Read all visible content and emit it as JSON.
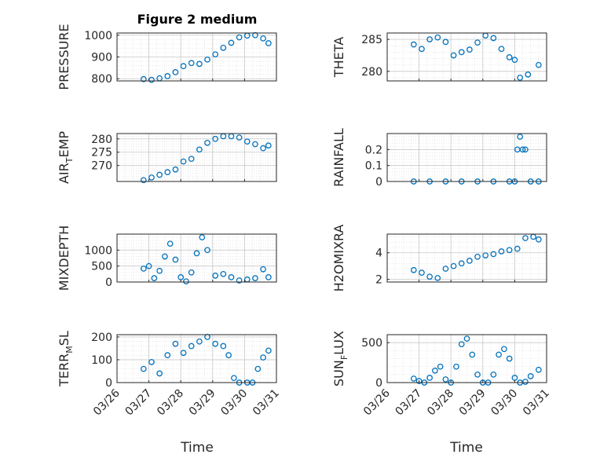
{
  "figure": {
    "title": "Figure 2 medium",
    "xlabel": "Time",
    "x_ticks": [
      "03/26",
      "03/27",
      "03/28",
      "03/29",
      "03/30",
      "03/31"
    ]
  },
  "chart_data": [
    {
      "type": "scatter",
      "ylabel": "PRESSURE",
      "ylim": [
        790,
        1010
      ],
      "yticks": [
        800,
        900,
        1000
      ],
      "marker": "circle-open",
      "color": "#0072BD",
      "grid": "minor+major",
      "x": [
        "2003-03-26T20",
        "2003-03-27T02",
        "2003-03-27T08",
        "2003-03-27T14",
        "2003-03-27T20",
        "2003-03-28T02",
        "2003-03-28T08",
        "2003-03-28T14",
        "2003-03-28T20",
        "2003-03-29T02",
        "2003-03-29T08",
        "2003-03-29T14",
        "2003-03-29T20",
        "2003-03-30T02",
        "2003-03-30T08",
        "2003-03-30T14",
        "2003-03-30T18"
      ],
      "y": [
        798,
        795,
        802,
        812,
        830,
        858,
        872,
        868,
        888,
        912,
        942,
        965,
        990,
        998,
        1000,
        985,
        963
      ]
    },
    {
      "type": "scatter",
      "ylabel": "THETA",
      "ylim": [
        278.5,
        286
      ],
      "yticks": [
        280,
        285
      ],
      "marker": "circle-open",
      "color": "#0072BD",
      "grid": "minor+major",
      "x": [
        "2003-03-26T20",
        "2003-03-27T02",
        "2003-03-27T08",
        "2003-03-27T14",
        "2003-03-27T20",
        "2003-03-28T02",
        "2003-03-28T08",
        "2003-03-28T14",
        "2003-03-28T20",
        "2003-03-29T02",
        "2003-03-29T08",
        "2003-03-29T14",
        "2003-03-29T20",
        "2003-03-30T00",
        "2003-03-30T04",
        "2003-03-30T10",
        "2003-03-30T18"
      ],
      "y": [
        284.2,
        283.5,
        285.0,
        285.3,
        284.6,
        282.5,
        283.0,
        283.4,
        284.5,
        285.6,
        285.2,
        283.5,
        282.2,
        281.8,
        279.0,
        279.5,
        281.0
      ]
    },
    {
      "type": "scatter",
      "ylabel": "AIR_TEMP",
      "ylim": [
        264,
        282
      ],
      "yticks": [
        270,
        275,
        280
      ],
      "marker": "circle-open",
      "color": "#0072BD",
      "grid": "minor+major",
      "x": [
        "2003-03-26T20",
        "2003-03-27T02",
        "2003-03-27T08",
        "2003-03-27T14",
        "2003-03-27T20",
        "2003-03-28T02",
        "2003-03-28T08",
        "2003-03-28T14",
        "2003-03-28T20",
        "2003-03-29T02",
        "2003-03-29T08",
        "2003-03-29T14",
        "2003-03-29T20",
        "2003-03-30T02",
        "2003-03-30T08",
        "2003-03-30T14",
        "2003-03-30T18"
      ],
      "y": [
        264.5,
        265.5,
        266.5,
        267.5,
        268.5,
        271.5,
        272.5,
        276,
        278.5,
        280,
        281,
        281,
        280.5,
        279,
        278,
        276.5,
        277.5
      ]
    },
    {
      "type": "scatter",
      "ylabel": "RAINFALL",
      "ylim": [
        0,
        0.3
      ],
      "yticks": [
        0,
        0.1,
        0.2
      ],
      "marker": "circle-open",
      "color": "#0072BD",
      "grid": "minor+major",
      "x": [
        "2003-03-26T20",
        "2003-03-27T08",
        "2003-03-27T20",
        "2003-03-28T08",
        "2003-03-28T20",
        "2003-03-29T08",
        "2003-03-29T20",
        "2003-03-30T00",
        "2003-03-30T02",
        "2003-03-30T04",
        "2003-03-30T06",
        "2003-03-30T08",
        "2003-03-30T12",
        "2003-03-30T18"
      ],
      "y": [
        0,
        0,
        0,
        0,
        0,
        0,
        0,
        0,
        0.2,
        0.28,
        0.2,
        0.2,
        0,
        0
      ]
    },
    {
      "type": "scatter",
      "ylabel": "MIXDEPTH",
      "ylim": [
        0,
        1500
      ],
      "yticks": [
        0,
        500,
        1000
      ],
      "marker": "circle-open",
      "color": "#0072BD",
      "grid": "minor+major",
      "x": [
        "2003-03-26T20",
        "2003-03-27T00",
        "2003-03-27T04",
        "2003-03-27T08",
        "2003-03-27T12",
        "2003-03-27T16",
        "2003-03-27T20",
        "2003-03-28T00",
        "2003-03-28T04",
        "2003-03-28T08",
        "2003-03-28T12",
        "2003-03-28T16",
        "2003-03-28T20",
        "2003-03-29T02",
        "2003-03-29T08",
        "2003-03-29T14",
        "2003-03-29T20",
        "2003-03-30T02",
        "2003-03-30T08",
        "2003-03-30T14",
        "2003-03-30T18"
      ],
      "y": [
        420,
        500,
        120,
        350,
        800,
        1200,
        700,
        150,
        20,
        300,
        900,
        1400,
        1000,
        200,
        250,
        150,
        50,
        80,
        120,
        400,
        150
      ]
    },
    {
      "type": "scatter",
      "ylabel": "H2OMIXRA",
      "ylim": [
        1.8,
        5.4
      ],
      "yticks": [
        2,
        4
      ],
      "marker": "circle-open",
      "color": "#0072BD",
      "grid": "minor+major",
      "x": [
        "2003-03-26T20",
        "2003-03-27T02",
        "2003-03-27T08",
        "2003-03-27T14",
        "2003-03-27T20",
        "2003-03-28T02",
        "2003-03-28T08",
        "2003-03-28T14",
        "2003-03-28T20",
        "2003-03-29T02",
        "2003-03-29T08",
        "2003-03-29T14",
        "2003-03-29T20",
        "2003-03-30T02",
        "2003-03-30T08",
        "2003-03-30T14",
        "2003-03-30T18"
      ],
      "y": [
        2.7,
        2.5,
        2.2,
        2.1,
        2.8,
        3.0,
        3.2,
        3.4,
        3.7,
        3.8,
        3.9,
        4.1,
        4.2,
        4.3,
        5.1,
        5.2,
        5.0
      ]
    },
    {
      "type": "scatter",
      "ylabel": "TERR_MSL",
      "ylim": [
        0,
        210
      ],
      "yticks": [
        0,
        100,
        200
      ],
      "marker": "circle-open",
      "color": "#0072BD",
      "grid": "minor+major",
      "x": [
        "2003-03-26T20",
        "2003-03-27T02",
        "2003-03-27T08",
        "2003-03-27T14",
        "2003-03-27T20",
        "2003-03-28T02",
        "2003-03-28T08",
        "2003-03-28T14",
        "2003-03-28T20",
        "2003-03-29T02",
        "2003-03-29T08",
        "2003-03-29T12",
        "2003-03-29T16",
        "2003-03-29T20",
        "2003-03-30T02",
        "2003-03-30T06",
        "2003-03-30T10",
        "2003-03-30T14",
        "2003-03-30T18"
      ],
      "y": [
        60,
        90,
        40,
        120,
        170,
        130,
        160,
        180,
        200,
        170,
        160,
        120,
        20,
        0,
        0,
        0,
        60,
        110,
        140
      ]
    },
    {
      "type": "scatter",
      "ylabel": "SUN_FLUX",
      "ylim": [
        0,
        600
      ],
      "yticks": [
        0,
        500
      ],
      "marker": "circle-open",
      "color": "#0072BD",
      "grid": "minor+major",
      "x": [
        "2003-03-26T20",
        "2003-03-27T00",
        "2003-03-27T04",
        "2003-03-27T08",
        "2003-03-27T12",
        "2003-03-27T16",
        "2003-03-27T20",
        "2003-03-28T00",
        "2003-03-28T04",
        "2003-03-28T08",
        "2003-03-28T12",
        "2003-03-28T16",
        "2003-03-28T20",
        "2003-03-29T00",
        "2003-03-29T04",
        "2003-03-29T08",
        "2003-03-29T12",
        "2003-03-29T16",
        "2003-03-29T20",
        "2003-03-30T00",
        "2003-03-30T04",
        "2003-03-30T08",
        "2003-03-30T12",
        "2003-03-30T18"
      ],
      "y": [
        50,
        20,
        0,
        60,
        150,
        200,
        40,
        0,
        200,
        480,
        550,
        350,
        100,
        0,
        0,
        100,
        350,
        420,
        300,
        60,
        0,
        10,
        80,
        160
      ]
    }
  ]
}
